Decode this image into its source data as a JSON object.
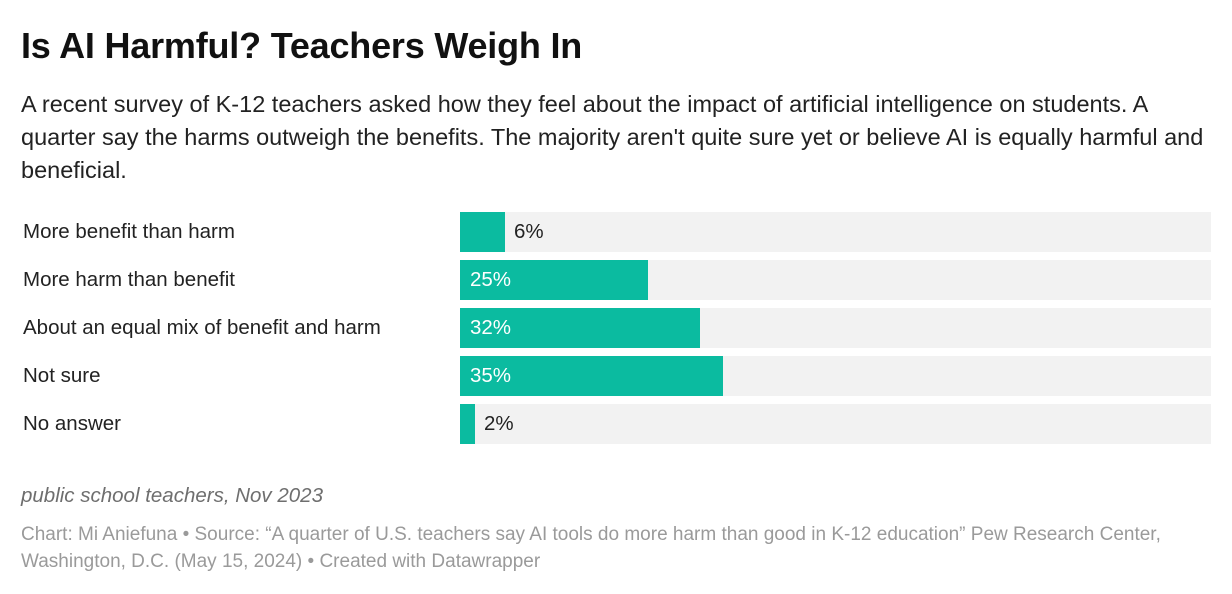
{
  "header": {
    "title": "Is AI Harmful? Teachers Weigh In",
    "subtitle": "A recent survey of K-12 teachers asked how they feel about the impact of artificial intelligence on students. A quarter say the harms outweigh the benefits. The majority aren't quite sure yet or believe AI is equally harmful and beneficial."
  },
  "chart_data": {
    "type": "bar",
    "orientation": "horizontal",
    "title": "Is AI Harmful? Teachers Weigh In",
    "categories": [
      "More benefit than harm",
      "More harm than benefit",
      "About an equal mix of benefit and harm",
      "Not sure",
      "No answer"
    ],
    "values": [
      6,
      25,
      32,
      35,
      2
    ],
    "value_labels": [
      "6%",
      "25%",
      "32%",
      "35%",
      "2%"
    ],
    "xlim": [
      0,
      100
    ],
    "unit": "%",
    "bar_color": "#0bbba0",
    "track_color": "#f2f2f2",
    "grid": false,
    "legend": "none"
  },
  "notes": "public school teachers, Nov 2023",
  "footer": "Chart: Mi Aniefuna • Source: “A quarter of U.S. teachers say AI tools do more harm than good in K-12 education” Pew Research Center, Washington, D.C. (May 15, 2024) • Created with Datawrapper"
}
